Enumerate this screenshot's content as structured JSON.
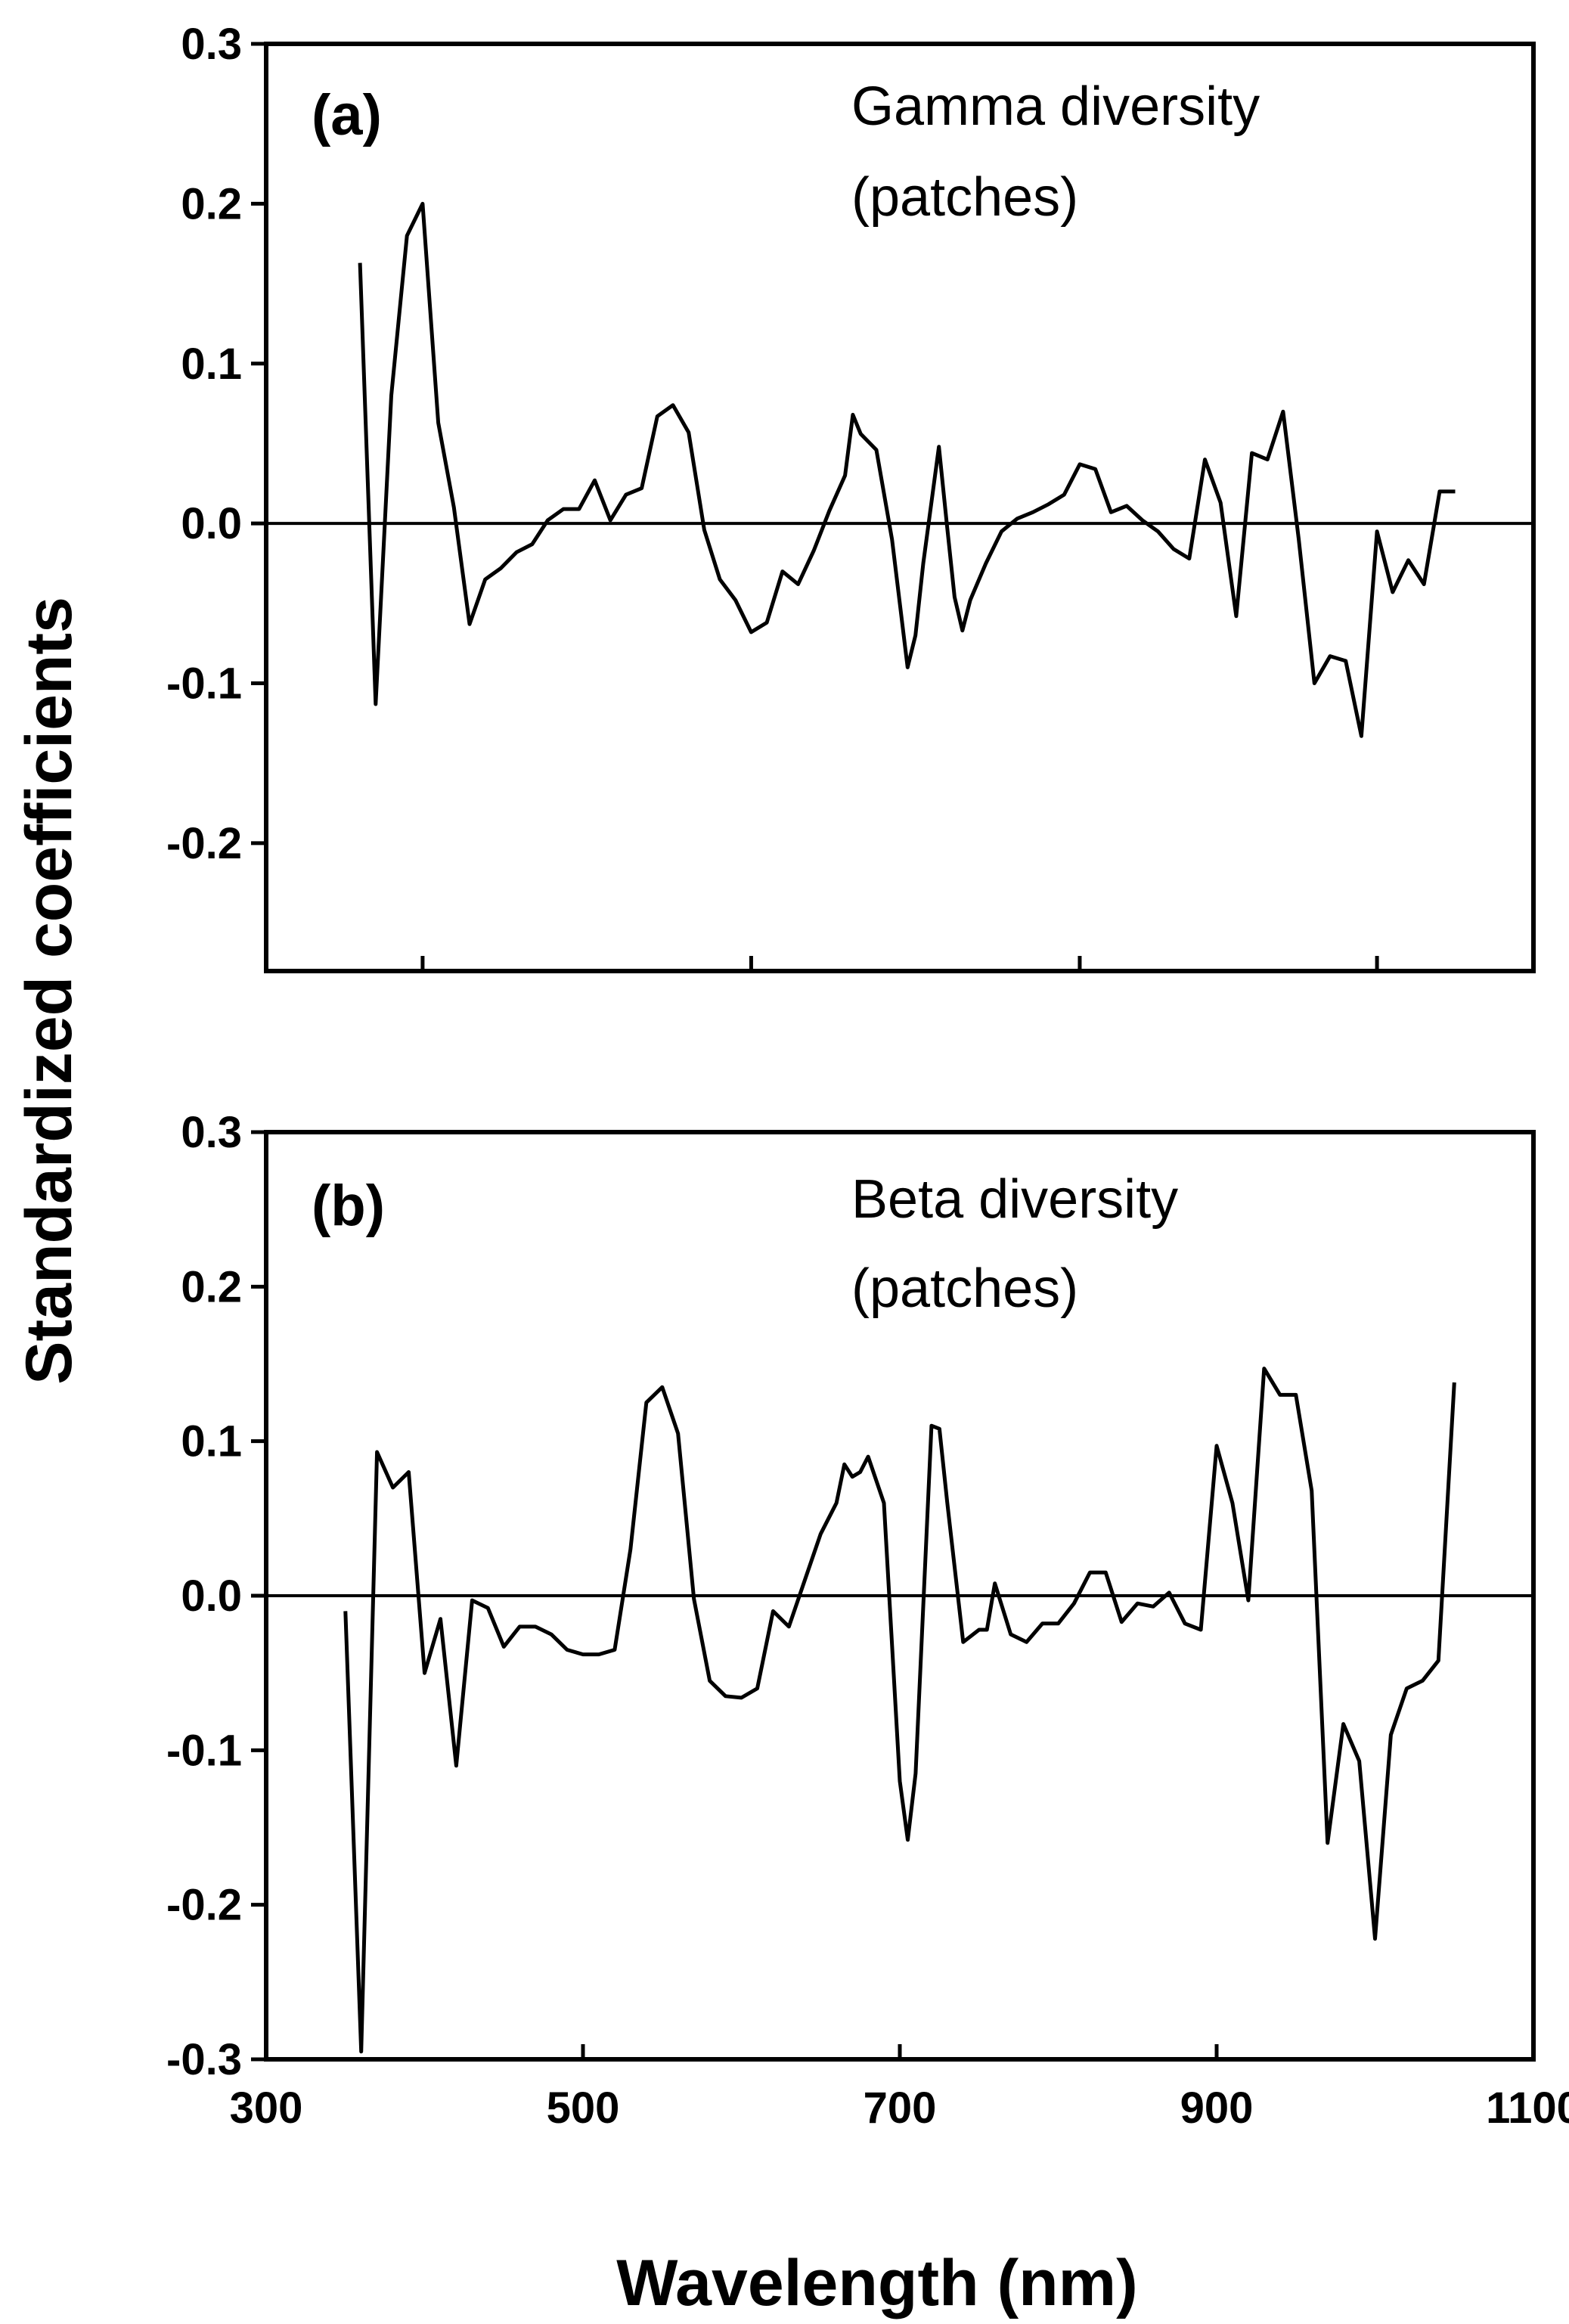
{
  "figure": {
    "ylabel": "Standardized coefficients",
    "xlabel": "Wavelength (nm)"
  },
  "chart_data": [
    {
      "type": "line",
      "panel_letter": "(a)",
      "title": "Gamma diversity",
      "subtitle": "(patches)",
      "ylim": [
        -0.28,
        0.3
      ],
      "yticks": [
        {
          "v": -0.2,
          "label": "-0.2"
        },
        {
          "v": -0.1,
          "label": "-0.1"
        },
        {
          "v": 0.0,
          "label": "0.0"
        },
        {
          "v": 0.1,
          "label": "0.1"
        },
        {
          "v": 0.2,
          "label": "0.2"
        },
        {
          "v": 0.3,
          "label": "0.3"
        }
      ],
      "xlim": [
        290,
        1100
      ],
      "xticks": [
        {
          "v": 390,
          "label": ""
        },
        {
          "v": 600,
          "label": ""
        },
        {
          "v": 810,
          "label": ""
        },
        {
          "v": 1000,
          "label": ""
        }
      ],
      "zero_line": true,
      "series": [
        {
          "name": "Gamma diversity (patches)",
          "x": [
            350,
            360,
            370,
            380,
            390,
            400,
            410,
            420,
            430,
            440,
            450,
            460,
            470,
            480,
            490,
            500,
            510,
            520,
            530,
            540,
            550,
            560,
            570,
            580,
            590,
            600,
            610,
            620,
            630,
            640,
            650,
            660,
            665,
            670,
            680,
            690,
            700,
            705,
            710,
            720,
            725,
            730,
            735,
            740,
            750,
            760,
            770,
            780,
            790,
            800,
            810,
            820,
            830,
            840,
            850,
            860,
            870,
            880,
            890,
            900,
            910,
            920,
            930,
            940,
            950,
            960,
            970,
            980,
            990,
            1000,
            1010,
            1020,
            1030,
            1040,
            1050
          ],
          "y": [
            0.163,
            -0.113,
            0.08,
            0.18,
            0.2,
            0.063,
            0.01,
            -0.063,
            -0.035,
            -0.028,
            -0.018,
            -0.013,
            0.002,
            0.009,
            0.009,
            0.027,
            0.002,
            0.018,
            0.022,
            0.067,
            0.074,
            0.057,
            -0.004,
            -0.035,
            -0.048,
            -0.068,
            -0.062,
            -0.03,
            -0.038,
            -0.017,
            0.008,
            0.03,
            0.068,
            0.056,
            0.046,
            -0.01,
            -0.09,
            -0.07,
            -0.025,
            0.048,
            0.0,
            -0.046,
            -0.067,
            -0.048,
            -0.025,
            -0.005,
            0.003,
            0.007,
            0.012,
            0.018,
            0.037,
            0.034,
            0.007,
            0.011,
            0.002,
            -0.005,
            -0.016,
            -0.022,
            0.04,
            0.013,
            -0.058,
            0.044,
            0.04,
            0.07,
            -0.01,
            -0.1,
            -0.083,
            -0.086,
            -0.133,
            -0.005,
            -0.043,
            -0.023,
            -0.038,
            0.02,
            0.02
          ]
        }
      ]
    },
    {
      "type": "line",
      "panel_letter": "(b)",
      "title": "Beta diversity",
      "subtitle": "(patches)",
      "ylim": [
        -0.3,
        0.3
      ],
      "yticks": [
        {
          "v": -0.3,
          "label": "-0.3"
        },
        {
          "v": -0.2,
          "label": "-0.2"
        },
        {
          "v": -0.1,
          "label": "-0.1"
        },
        {
          "v": 0.0,
          "label": "0.0"
        },
        {
          "v": 0.1,
          "label": "0.1"
        },
        {
          "v": 0.2,
          "label": "0.2"
        },
        {
          "v": 0.3,
          "label": "0.3"
        }
      ],
      "xlim": [
        300,
        1100
      ],
      "xticks": [
        {
          "v": 300,
          "label": "300"
        },
        {
          "v": 500,
          "label": "500"
        },
        {
          "v": 700,
          "label": "700"
        },
        {
          "v": 900,
          "label": "900"
        },
        {
          "v": 1100,
          "label": "1100"
        }
      ],
      "zero_line": true,
      "series": [
        {
          "name": "Beta diversity (patches)",
          "x": [
            350,
            360,
            370,
            380,
            390,
            400,
            410,
            420,
            430,
            440,
            450,
            460,
            470,
            480,
            490,
            500,
            510,
            520,
            530,
            540,
            550,
            560,
            570,
            580,
            590,
            600,
            610,
            620,
            630,
            640,
            650,
            660,
            665,
            670,
            675,
            680,
            690,
            700,
            705,
            710,
            720,
            725,
            730,
            740,
            750,
            755,
            760,
            770,
            780,
            790,
            800,
            810,
            820,
            830,
            840,
            850,
            860,
            870,
            880,
            890,
            900,
            910,
            920,
            930,
            940,
            950,
            960,
            970,
            980,
            990,
            1000,
            1010,
            1020,
            1030,
            1040,
            1050
          ],
          "y": [
            -0.01,
            -0.295,
            0.093,
            0.07,
            0.08,
            -0.05,
            -0.015,
            -0.11,
            -0.003,
            -0.008,
            -0.033,
            -0.02,
            -0.02,
            -0.025,
            -0.035,
            -0.038,
            -0.038,
            -0.035,
            0.03,
            0.125,
            0.135,
            0.105,
            -0.002,
            -0.055,
            -0.065,
            -0.066,
            -0.06,
            -0.01,
            -0.02,
            0.01,
            0.04,
            0.06,
            0.085,
            0.077,
            0.08,
            0.09,
            0.06,
            -0.12,
            -0.158,
            -0.115,
            0.11,
            0.108,
            0.06,
            -0.03,
            -0.022,
            -0.022,
            0.008,
            -0.025,
            -0.03,
            -0.018,
            -0.018,
            -0.005,
            0.015,
            0.015,
            -0.017,
            -0.005,
            -0.007,
            0.002,
            -0.018,
            -0.022,
            0.097,
            0.06,
            -0.003,
            0.147,
            0.13,
            0.13,
            0.068,
            -0.16,
            -0.083,
            -0.107,
            -0.222,
            -0.09,
            -0.06,
            -0.055,
            -0.042,
            0.138
          ]
        }
      ]
    }
  ]
}
